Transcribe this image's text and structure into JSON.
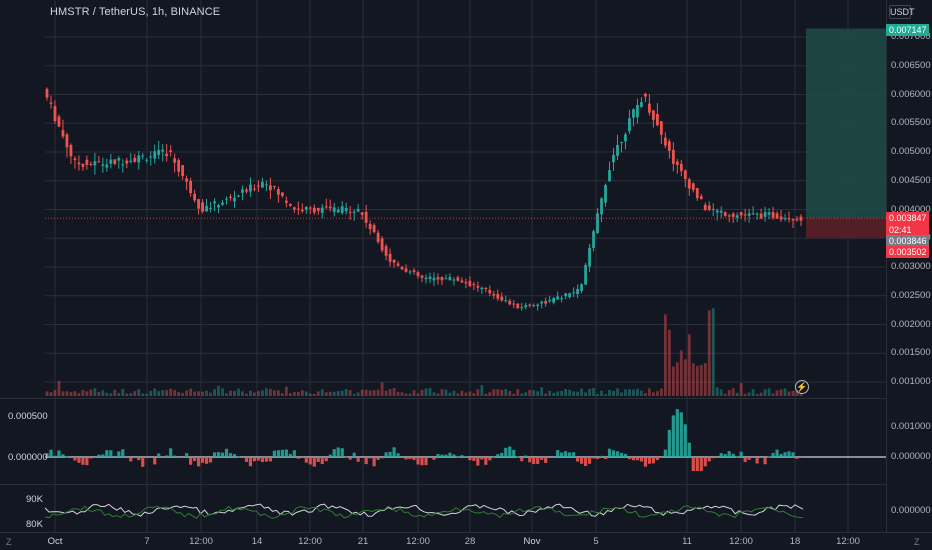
{
  "header": {
    "symbol_title": "HMSTR / TetherUS, 1h, BINANCE",
    "currency": "USDT"
  },
  "price_axis": {
    "ticks": [
      "0.007000",
      "0.006500",
      "0.006000",
      "0.005500",
      "0.005000",
      "0.004500",
      "0.004000",
      "0.003500",
      "0.003000",
      "0.002500",
      "0.002000",
      "0.001500",
      "0.001000"
    ]
  },
  "price_tags": {
    "target": "0.007147",
    "last": "0.003847",
    "countdown": "02:41",
    "bid": "0.003846",
    "stop": "0.003502"
  },
  "oscillator": {
    "left_ticks": [
      "0.000500",
      "0.000000"
    ],
    "right_ticks": [
      "0.001000",
      "0.000000"
    ]
  },
  "volume_line": {
    "left_ticks": [
      "90K",
      "80K"
    ],
    "right_tick": "0.000000"
  },
  "time_axis": {
    "labels": [
      {
        "text": "Oct",
        "bold": true
      },
      {
        "text": "7",
        "bold": false
      },
      {
        "text": "12:00",
        "bold": false
      },
      {
        "text": "14",
        "bold": false
      },
      {
        "text": "12:00",
        "bold": false
      },
      {
        "text": "21",
        "bold": false
      },
      {
        "text": "12:00",
        "bold": false
      },
      {
        "text": "28",
        "bold": false
      },
      {
        "text": "Nov",
        "bold": true
      },
      {
        "text": "5",
        "bold": false
      },
      {
        "text": "11",
        "bold": false
      },
      {
        "text": "12:00",
        "bold": false
      },
      {
        "text": "18",
        "bold": false
      },
      {
        "text": "12:00",
        "bold": false
      }
    ]
  },
  "corner": {
    "left": "Z",
    "right": "Z"
  },
  "replay_icon": "⚡",
  "colors": {
    "background": "#131722",
    "grid": "#2a2e39",
    "up": "#26a69a",
    "down": "#ef5350",
    "target_zone": "#1f4e47",
    "stop_zone": "#5c1f27",
    "signal_line": "#d1d4dc",
    "green_line": "#2e7d32"
  },
  "chart_data": {
    "type": "line",
    "series": [
      {
        "name": "",
        "x": [
          "Oct 1",
          "Oct 3",
          "Oct 5",
          "Oct 7",
          "Oct 9",
          "Oct 12",
          "Oct 14",
          "Oct 16",
          "Oct 19",
          "Oct 21",
          "Oct 23",
          "Oct 25",
          "Oct 27",
          "Oct 30",
          "Nov 1",
          "Nov 3",
          "Nov 5",
          "Nov 8",
          "Nov 9",
          "Nov 10",
          "Nov 11",
          "Nov 13",
          "Nov 15",
          "Nov 17",
          "Nov 18"
        ],
        "values": [
          0.0061,
          0.0048,
          0.0048,
          0.0049,
          0.005,
          0.004,
          0.0042,
          0.0045,
          0.004,
          0.004,
          0.004,
          0.0031,
          0.0028,
          0.0028,
          0.0026,
          0.0023,
          0.0024,
          0.0026,
          0.0049,
          0.006,
          0.0048,
          0.004,
          0.0039,
          0.0039,
          0.00385
        ]
      }
    ],
    "ylim": [
      0.00085,
      0.00715
    ],
    "grid": true,
    "xlabel": "",
    "ylabel": "",
    "title": "",
    "position_box": {
      "entry": 0.003847,
      "target": 0.007147,
      "stop": 0.003502
    }
  }
}
